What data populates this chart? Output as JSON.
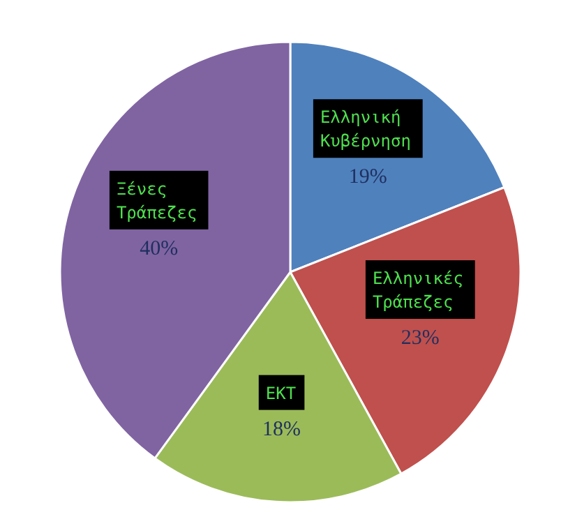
{
  "chart_data": {
    "type": "pie",
    "categories": [
      "Ελληνική Κυβέρνηση",
      "Ελληνικές Τράπεζες",
      "ΕΚΤ",
      "Ξένες Τράπεζες"
    ],
    "values": [
      19,
      23,
      18,
      40
    ],
    "colors": [
      "#4f81bd",
      "#c0504d",
      "#9bbb59",
      "#8064a2"
    ],
    "value_labels": [
      "19%",
      "23%",
      "18%",
      "40%"
    ],
    "legend": false
  }
}
